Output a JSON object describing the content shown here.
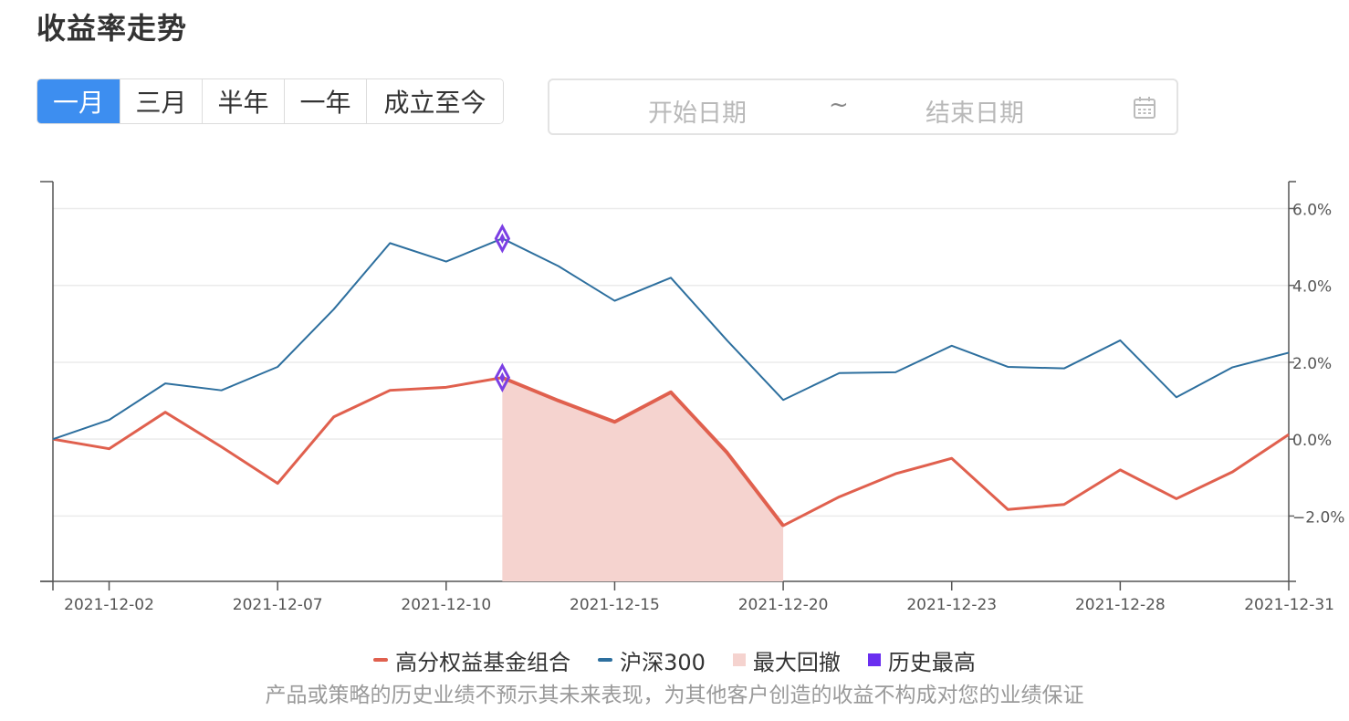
{
  "title": "收益率走势",
  "tabs": [
    {
      "label": "一月",
      "active": true
    },
    {
      "label": "三月",
      "active": false
    },
    {
      "label": "半年",
      "active": false
    },
    {
      "label": "一年",
      "active": false
    },
    {
      "label": "成立至今",
      "active": false
    }
  ],
  "date_range": {
    "start_placeholder": "开始日期",
    "separator": "~",
    "end_placeholder": "结束日期",
    "icon": "calendar-icon"
  },
  "colors": {
    "portfolio": "#e0604e",
    "index": "#2d6f9e",
    "drawdown": "#f5d3cf",
    "peak": "#7b3fe4",
    "tab_active": "#3d8ef0"
  },
  "chart_data": {
    "type": "line",
    "x": [
      "2021-12-01",
      "2021-12-02",
      "2021-12-03",
      "2021-12-06",
      "2021-12-07",
      "2021-12-08",
      "2021-12-09",
      "2021-12-10",
      "2021-12-13",
      "2021-12-14",
      "2021-12-15",
      "2021-12-16",
      "2021-12-17",
      "2021-12-20",
      "2021-12-21",
      "2021-12-22",
      "2021-12-23",
      "2021-12-24",
      "2021-12-27",
      "2021-12-28",
      "2021-12-29",
      "2021-12-30",
      "2021-12-31"
    ],
    "x_tick_labels": [
      "2021-12-02",
      "2021-12-07",
      "2021-12-10",
      "2021-12-15",
      "2021-12-20",
      "2021-12-23",
      "2021-12-28",
      "2021-12-31"
    ],
    "y_ticks": [
      "6.0%",
      "4.0%",
      "2.0%",
      "0.0%",
      "−2.0%"
    ],
    "ylim": [
      -3.7,
      6.7
    ],
    "series": [
      {
        "name": "高分权益基金组合",
        "values": [
          0.0,
          -0.25,
          0.7,
          -0.2,
          -1.15,
          0.58,
          1.27,
          1.35,
          1.6,
          1.0,
          0.45,
          1.22,
          -0.35,
          -2.25,
          -1.5,
          -0.9,
          -0.5,
          -1.83,
          -1.7,
          -0.8,
          -1.55,
          -0.85,
          0.12
        ]
      },
      {
        "name": "沪深300",
        "values": [
          0.0,
          0.5,
          1.45,
          1.27,
          1.88,
          3.38,
          5.1,
          4.62,
          5.22,
          4.5,
          3.6,
          4.2,
          2.57,
          1.02,
          1.72,
          1.74,
          2.43,
          1.88,
          1.84,
          2.57,
          1.09,
          1.87,
          2.25
        ]
      }
    ],
    "max_drawdown": {
      "name": "最大回撤",
      "series": "高分权益基金组合",
      "start": "2021-12-13",
      "end": "2021-12-20"
    },
    "historical_high": {
      "name": "历史最高",
      "date": "2021-12-13"
    },
    "legend": [
      "高分权益基金组合",
      "沪深300",
      "最大回撤",
      "历史最高"
    ],
    "legend_position": "bottom",
    "grid": true
  },
  "disclaimer": "产品或策略的历史业绩不预示其未来表现，为其他客户创造的收益不构成对您的业绩保证"
}
